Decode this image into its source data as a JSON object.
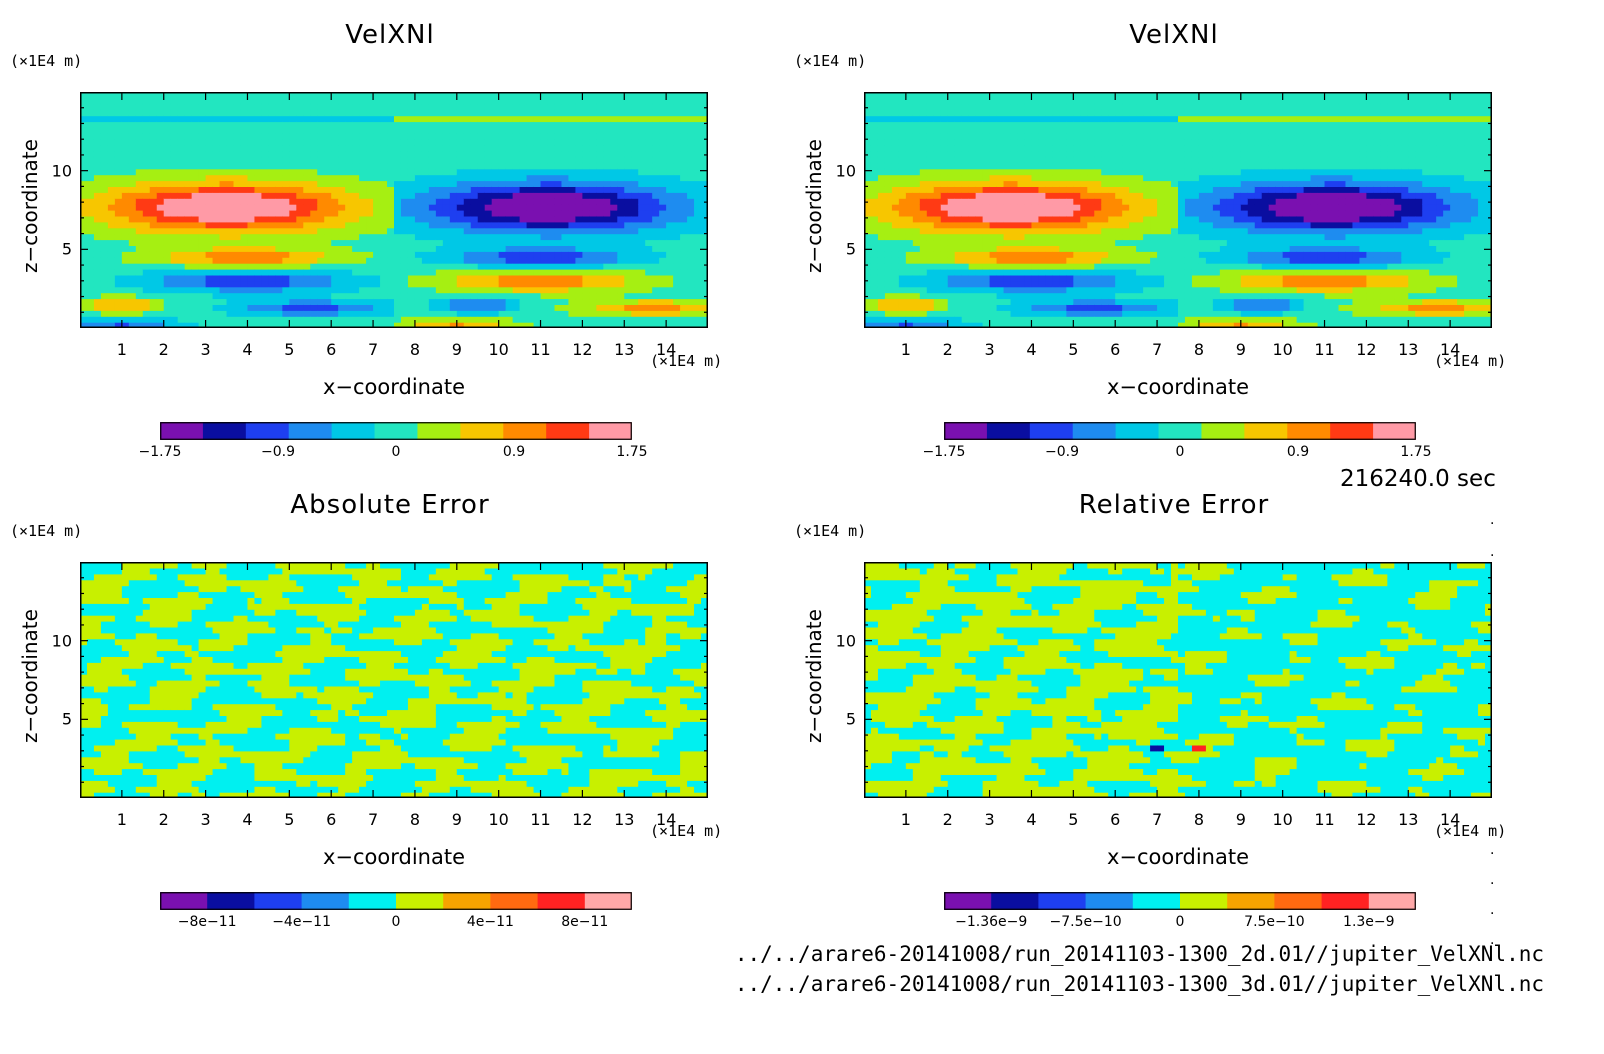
{
  "time_label": "216240.0 sec",
  "files": [
    "../../arare6-20141008/run_20141103-1300_2d.01//jupiter_VelXNl.nc",
    "../../arare6-20141008/run_20141103-1300_3d.01//jupiter_VelXNl.nc"
  ],
  "palette11": [
    "#7a10b0",
    "#0a0ea0",
    "#1e3ff0",
    "#1e8cf0",
    "#00c8e6",
    "#22e6c0",
    "#a6ef12",
    "#f7c600",
    "#ff8a00",
    "#ff3a14",
    "#ff9aa6"
  ],
  "palette10": [
    "#7a10b0",
    "#0a0ea0",
    "#1e3ff0",
    "#1e8cf0",
    "#00f0f0",
    "#c8f000",
    "#f7a300",
    "#ff6a10",
    "#ff2222",
    "#ffa8a8"
  ],
  "chart_data": [
    {
      "type": "heatmap",
      "title": "VelXNl",
      "xlabel": "x−coordinate",
      "ylabel": "z−coordinate",
      "x_unit": "(×1E4 m)",
      "y_unit": "(×1E4 m)",
      "xlim": [
        0,
        15
      ],
      "ylim": [
        0,
        15
      ],
      "x_ticks": [
        "1",
        "2",
        "3",
        "4",
        "5",
        "6",
        "7",
        "8",
        "9",
        "10",
        "11",
        "12",
        "13",
        "14"
      ],
      "y_ticks": [
        "5",
        "10"
      ],
      "colorbar_ticks": [
        "−1.75",
        "−0.9",
        "0",
        "0.9",
        "1.75"
      ],
      "colorbar_range": [
        -1.75,
        1.75
      ],
      "field": "jet"
    },
    {
      "type": "heatmap",
      "title": "VelXNl",
      "xlabel": "x−coordinate",
      "ylabel": "z−coordinate",
      "x_unit": "(×1E4 m)",
      "y_unit": "(×1E4 m)",
      "xlim": [
        0,
        15
      ],
      "ylim": [
        0,
        15
      ],
      "x_ticks": [
        "1",
        "2",
        "3",
        "4",
        "5",
        "6",
        "7",
        "8",
        "9",
        "10",
        "11",
        "12",
        "13",
        "14"
      ],
      "y_ticks": [
        "5",
        "10"
      ],
      "colorbar_ticks": [
        "−1.75",
        "−0.9",
        "0",
        "0.9",
        "1.75"
      ],
      "colorbar_range": [
        -1.75,
        1.75
      ],
      "field": "jet"
    },
    {
      "type": "heatmap",
      "title": "Absolute Error",
      "xlabel": "x−coordinate",
      "ylabel": "z−coordinate",
      "x_unit": "(×1E4 m)",
      "y_unit": "(×1E4 m)",
      "xlim": [
        0,
        15
      ],
      "ylim": [
        0,
        15
      ],
      "x_ticks": [
        "1",
        "2",
        "3",
        "4",
        "5",
        "6",
        "7",
        "8",
        "9",
        "10",
        "11",
        "12",
        "13",
        "14"
      ],
      "y_ticks": [
        "5",
        "10"
      ],
      "colorbar_ticks": [
        "−8e−11",
        "−4e−11",
        "0",
        "4e−11",
        "8e−11"
      ],
      "colorbar_range": [
        -1e-10,
        1e-10
      ],
      "field": "noise-abs"
    },
    {
      "type": "heatmap",
      "title": "Relative Error",
      "xlabel": "x−coordinate",
      "ylabel": "z−coordinate",
      "x_unit": "(×1E4 m)",
      "y_unit": "(×1E4 m)",
      "xlim": [
        0,
        15
      ],
      "ylim": [
        0,
        15
      ],
      "x_ticks": [
        "1",
        "2",
        "3",
        "4",
        "5",
        "6",
        "7",
        "8",
        "9",
        "10",
        "11",
        "12",
        "13",
        "14"
      ],
      "y_ticks": [
        "5",
        "10"
      ],
      "colorbar_ticks": [
        "−1.36e−9",
        "−7.5e−10",
        "0",
        "7.5e−10",
        "1.3e−9"
      ],
      "colorbar_range": [
        -1.36e-09,
        1.3e-09
      ],
      "field": "noise-rel"
    }
  ]
}
